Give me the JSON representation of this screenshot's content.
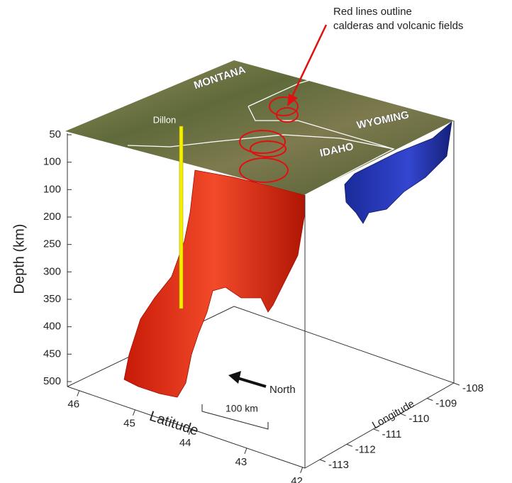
{
  "annotation": [
    "Red lines outline",
    "calderas and volcanic fields"
  ],
  "map_labels": {
    "montana": "MONTANA",
    "wyoming": "WYOMING",
    "idaho": "IDAHO",
    "dillon": "Dillon"
  },
  "depth_axis": {
    "label": "Depth (km)",
    "ticks": [
      "50",
      "100",
      "100",
      "200",
      "250",
      "300",
      "350",
      "400",
      "450",
      "500"
    ]
  },
  "latitude_axis": {
    "label": "Latitude",
    "ticks": [
      "46",
      "45",
      "44",
      "43",
      "42"
    ]
  },
  "longitude_axis": {
    "label": "Longitude",
    "ticks": [
      "-108",
      "-109",
      "-110",
      "-111",
      "-112",
      "-113"
    ]
  },
  "scale_bar": "100 km",
  "north": "North"
}
